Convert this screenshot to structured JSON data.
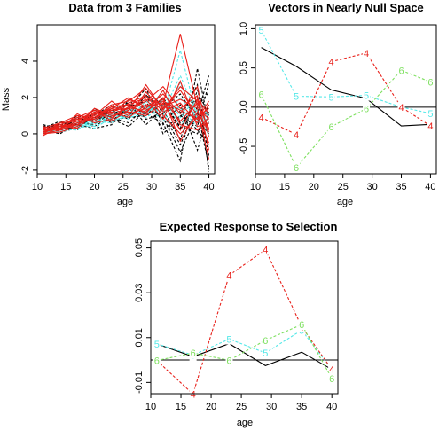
{
  "chart_data": [
    {
      "type": "line",
      "title": "Data from 3 Families",
      "xlabel": "age",
      "ylabel": "Mass",
      "xlim": [
        10,
        41
      ],
      "ylim": [
        -2.2,
        6.0
      ],
      "x_ticks": [
        10,
        15,
        20,
        25,
        30,
        35,
        40
      ],
      "y_ticks": [
        -2,
        0,
        2,
        4
      ],
      "x": [
        11,
        14,
        17,
        20,
        23,
        26,
        29,
        32,
        35,
        38,
        40
      ],
      "series": [
        {
          "color": "#000000",
          "dash": true,
          "values": [
            0.5,
            0.3,
            0.6,
            0.8,
            1.0,
            1.2,
            1.1,
            0.6,
            -1.5,
            3.6,
            0.5
          ]
        },
        {
          "color": "#000000",
          "dash": true,
          "values": [
            0.1,
            0.2,
            0.4,
            0.9,
            0.7,
            1.5,
            1.8,
            0.2,
            1.0,
            0.4,
            2.8
          ]
        },
        {
          "color": "#000000",
          "dash": true,
          "values": [
            0.3,
            0.5,
            0.7,
            0.5,
            1.3,
            0.9,
            1.0,
            2.0,
            0.6,
            1.3,
            -1.8
          ]
        },
        {
          "color": "#000000",
          "dash": true,
          "values": [
            0.4,
            0.1,
            0.3,
            1.2,
            0.9,
            0.6,
            1.5,
            1.3,
            -0.3,
            2.4,
            1.0
          ]
        },
        {
          "color": "#000000",
          "dash": true,
          "values": [
            0.2,
            0.4,
            0.8,
            1.0,
            1.6,
            1.1,
            2.1,
            1.7,
            1.2,
            0.2,
            -0.6
          ]
        },
        {
          "color": "#000000",
          "dash": true,
          "values": [
            0.0,
            0.6,
            0.5,
            0.3,
            0.5,
            1.9,
            0.8,
            1.1,
            -0.6,
            1.5,
            2.3
          ]
        },
        {
          "color": "#000000",
          "dash": true,
          "values": [
            0.5,
            0.2,
            0.9,
            0.6,
            1.1,
            1.4,
            2.5,
            0.5,
            1.6,
            -0.9,
            1.2
          ]
        },
        {
          "color": "#000000",
          "dash": true,
          "values": [
            0.3,
            0.7,
            0.4,
            1.4,
            0.8,
            0.4,
            1.3,
            1.9,
            0.3,
            2.0,
            -1.2
          ]
        },
        {
          "color": "#000000",
          "dash": true,
          "values": [
            0.1,
            0.3,
            1.0,
            0.7,
            1.4,
            1.7,
            0.5,
            1.4,
            2.2,
            0.8,
            0.0
          ]
        },
        {
          "color": "#000000",
          "dash": true,
          "values": [
            0.4,
            0.5,
            0.2,
            1.1,
            0.6,
            1.0,
            1.6,
            0.9,
            -1.0,
            1.1,
            3.2
          ]
        },
        {
          "color": "#000000",
          "dash": true,
          "values": [
            0.2,
            0.0,
            0.6,
            0.9,
            1.2,
            0.8,
            2.2,
            0.0,
            0.9,
            2.7,
            -2.1
          ]
        },
        {
          "color": "#000000",
          "dash": true,
          "values": [
            0.3,
            0.4,
            0.7,
            0.4,
            1.0,
            1.3,
            1.2,
            1.6,
            0.4,
            0.0,
            1.6
          ]
        },
        {
          "color": "#55e8e8",
          "dash": true,
          "values": [
            0.0,
            0.3,
            0.4,
            0.6,
            0.9,
            1.1,
            1.4,
            1.2,
            3.2,
            1.0,
            0.8
          ]
        },
        {
          "color": "#55e8e8",
          "dash": true,
          "values": [
            0.1,
            0.2,
            0.6,
            0.8,
            0.7,
            1.0,
            1.2,
            2.4,
            0.9,
            1.6,
            0.3
          ]
        },
        {
          "color": "#55e8e8",
          "dash": true,
          "values": [
            0.2,
            0.1,
            0.3,
            0.5,
            1.1,
            0.8,
            1.8,
            1.0,
            2.8,
            0.6,
            1.4
          ]
        },
        {
          "color": "#55e8e8",
          "dash": true,
          "values": [
            0.0,
            0.4,
            0.5,
            0.7,
            0.6,
            1.4,
            0.9,
            1.5,
            1.1,
            1.8,
            -0.2
          ]
        },
        {
          "color": "#55e8e8",
          "dash": true,
          "values": [
            0.1,
            0.3,
            0.2,
            0.9,
            1.0,
            1.2,
            1.6,
            0.7,
            2.0,
            0.9,
            1.0
          ]
        },
        {
          "color": "#55e8e8",
          "dash": true,
          "values": [
            0.2,
            0.2,
            0.7,
            0.4,
            0.8,
            0.9,
            1.1,
            1.9,
            0.5,
            1.3,
            0.6
          ]
        },
        {
          "color": "#55e8e8",
          "dash": true,
          "values": [
            0.0,
            0.5,
            0.4,
            0.6,
            1.2,
            1.3,
            1.5,
            1.1,
            4.6,
            0.8,
            1.1
          ]
        },
        {
          "color": "#55e8e8",
          "dash": true,
          "values": [
            0.1,
            0.1,
            0.6,
            0.3,
            0.9,
            1.0,
            1.3,
            1.6,
            1.4,
            0.4,
            0.2
          ]
        },
        {
          "color": "#e8201a",
          "dash": false,
          "values": [
            0.1,
            0.4,
            0.8,
            1.1,
            1.3,
            1.6,
            2.0,
            1.6,
            5.5,
            1.5,
            0.8
          ]
        },
        {
          "color": "#e8201a",
          "dash": false,
          "values": [
            0.0,
            0.2,
            0.6,
            0.9,
            1.5,
            1.3,
            1.8,
            2.6,
            1.4,
            2.1,
            -0.9
          ]
        },
        {
          "color": "#e8201a",
          "dash": false,
          "values": [
            0.2,
            0.5,
            0.9,
            1.3,
            1.1,
            1.9,
            1.5,
            1.9,
            0.7,
            1.7,
            0.3
          ]
        },
        {
          "color": "#e8201a",
          "dash": false,
          "values": [
            0.1,
            0.3,
            0.7,
            0.8,
            1.4,
            1.0,
            2.3,
            1.2,
            1.7,
            0.6,
            1.6
          ]
        },
        {
          "color": "#e8201a",
          "dash": false,
          "values": [
            -0.1,
            0.4,
            0.5,
            1.2,
            0.9,
            1.5,
            1.2,
            2.0,
            -0.4,
            1.2,
            0.1
          ]
        },
        {
          "color": "#e8201a",
          "dash": false,
          "values": [
            0.3,
            0.6,
            1.0,
            0.9,
            1.6,
            1.8,
            2.5,
            1.4,
            2.4,
            1.0,
            -0.5
          ]
        },
        {
          "color": "#e8201a",
          "dash": false,
          "values": [
            0.0,
            0.1,
            0.4,
            1.4,
            1.0,
            1.2,
            1.0,
            1.7,
            0.2,
            1.9,
            1.1
          ]
        },
        {
          "color": "#e8201a",
          "dash": false,
          "values": [
            0.2,
            0.4,
            0.8,
            0.7,
            1.3,
            1.4,
            1.9,
            0.8,
            2.9,
            0.4,
            0.6
          ]
        },
        {
          "color": "#e8201a",
          "dash": false,
          "values": [
            0.1,
            0.3,
            0.6,
            1.0,
            1.8,
            1.1,
            1.4,
            2.2,
            1.1,
            2.6,
            -0.2
          ]
        },
        {
          "color": "#e8201a",
          "dash": false,
          "values": [
            0.4,
            0.2,
            1.1,
            0.6,
            0.8,
            1.7,
            2.1,
            1.0,
            0.0,
            0.9,
            1.4
          ]
        },
        {
          "color": "#e8201a",
          "dash": false,
          "values": [
            0.0,
            0.5,
            0.3,
            1.1,
            1.2,
            0.9,
            1.6,
            1.5,
            1.9,
            1.4,
            -1.4
          ]
        },
        {
          "color": "#e8201a",
          "dash": false,
          "values": [
            0.2,
            0.3,
            0.9,
            0.8,
            1.5,
            1.6,
            1.1,
            2.4,
            0.5,
            0.2,
            0.9
          ]
        },
        {
          "color": "#e8201a",
          "dash": false,
          "values": [
            0.1,
            0.6,
            0.7,
            1.3,
            0.7,
            1.3,
            2.7,
            1.3,
            2.6,
            1.8,
            0.2
          ]
        },
        {
          "color": "#e8201a",
          "dash": false,
          "values": [
            0.3,
            0.2,
            0.5,
            0.9,
            1.4,
            2.0,
            1.3,
            1.8,
            1.3,
            0.8,
            1.8
          ]
        }
      ]
    },
    {
      "type": "line",
      "title": "Vectors in Nearly Null Space",
      "xlabel": "age",
      "ylabel": "",
      "xlim": [
        10,
        41
      ],
      "ylim": [
        -0.85,
        1.05
      ],
      "x_ticks": [
        10,
        15,
        20,
        25,
        30,
        35,
        40
      ],
      "y_ticks": [
        -0.5,
        0.0,
        0.5,
        1.0
      ],
      "y_tick_labels": [
        "-0.5",
        "0.0",
        "0.5",
        "1.0"
      ],
      "hline": 0,
      "x": [
        11,
        17,
        23,
        29,
        35,
        40
      ],
      "series": [
        {
          "color": "#000000",
          "dash": false,
          "marker": "",
          "values": [
            0.76,
            0.52,
            0.22,
            0.11,
            -0.24,
            -0.22
          ]
        },
        {
          "color": "#55e8e8",
          "dash": true,
          "marker": "5",
          "values": [
            0.98,
            0.14,
            0.13,
            0.15,
            0.0,
            -0.08
          ]
        },
        {
          "color": "#e8201a",
          "dash": true,
          "marker": "4",
          "values": [
            -0.13,
            -0.35,
            0.58,
            0.69,
            0.0,
            -0.24
          ]
        },
        {
          "color": "#7ee060",
          "dash": true,
          "marker": "6",
          "values": [
            0.16,
            -0.77,
            -0.25,
            -0.02,
            0.47,
            0.32
          ]
        }
      ]
    },
    {
      "type": "line",
      "title": "Expected Response to Selection",
      "xlabel": "age",
      "ylabel": "",
      "xlim": [
        10,
        41
      ],
      "ylim": [
        -0.015,
        0.053
      ],
      "x_ticks": [
        10,
        15,
        20,
        25,
        30,
        35,
        40
      ],
      "y_ticks": [
        -0.01,
        0.01,
        0.03,
        0.05
      ],
      "y_tick_labels": [
        "-0.01",
        "0.01",
        "0.03",
        "0.05"
      ],
      "hline": 0,
      "x": [
        11,
        17,
        23,
        29,
        35,
        40
      ],
      "series": [
        {
          "color": "#000000",
          "dash": false,
          "marker": "",
          "values": [
            0.0072,
            0.0015,
            0.0073,
            -0.0025,
            0.0035,
            -0.0042
          ]
        },
        {
          "color": "#55e8e8",
          "dash": true,
          "marker": "5",
          "values": [
            0.0072,
            0.0022,
            0.0093,
            0.0032,
            0.0133,
            -0.0042
          ]
        },
        {
          "color": "#e8201a",
          "dash": true,
          "marker": "4",
          "values": [
            -0.0002,
            -0.0152,
            0.0378,
            0.0492,
            0.0148,
            -0.0042
          ]
        },
        {
          "color": "#7ee060",
          "dash": true,
          "marker": "6",
          "values": [
            -0.0002,
            0.0031,
            -0.0001,
            0.0088,
            0.0158,
            -0.0082
          ]
        }
      ]
    }
  ]
}
